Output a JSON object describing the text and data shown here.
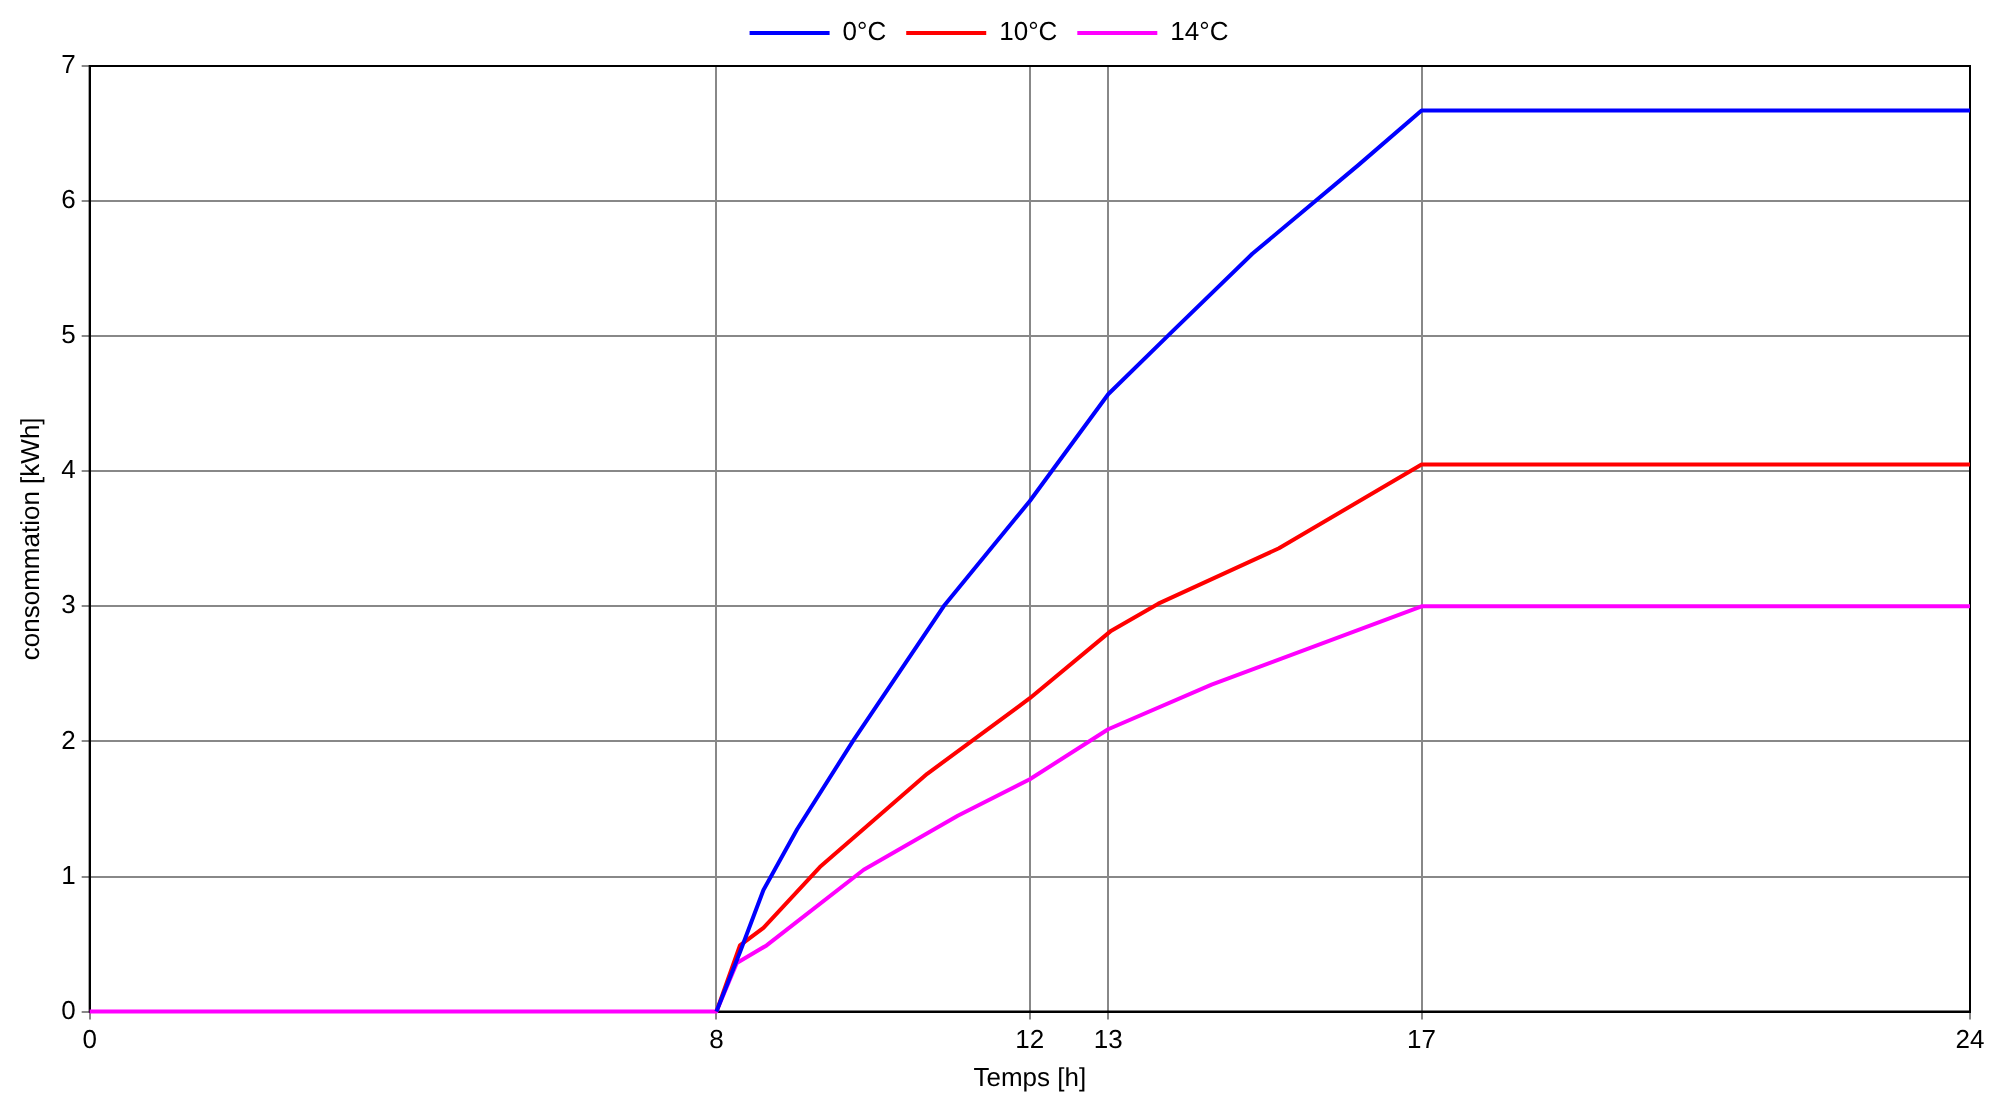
{
  "chart_data": {
    "type": "line",
    "xlabel": "Temps [h]",
    "ylabel": "consommation [kWh]",
    "xlim": [
      0,
      24
    ],
    "xticks": [
      0,
      8,
      12,
      13,
      17,
      24
    ],
    "ylim": [
      0,
      7
    ],
    "yticks": [
      0,
      1,
      2,
      3,
      4,
      5,
      6,
      7
    ],
    "grid": true,
    "legend": "top",
    "marker": "none",
    "line_style": "solid",
    "series": [
      {
        "name": "0°C",
        "color": "#0000ff",
        "x": [
          8,
          8.3,
          8.6,
          9.03,
          9.75,
          10.9,
          12,
          13,
          13.81,
          14.84,
          16.2,
          17,
          24
        ],
        "values": [
          0,
          0.44,
          0.9,
          1.35,
          2.01,
          3.0,
          3.78,
          4.57,
          5.03,
          5.61,
          6.27,
          6.67,
          6.67
        ]
      },
      {
        "name": "10°C",
        "color": "#ff0000",
        "x": [
          8,
          8.3,
          8.6,
          9.32,
          10.69,
          12,
          13.04,
          13.64,
          15.18,
          17,
          24
        ],
        "values": [
          0,
          0.49,
          0.62,
          1.07,
          1.76,
          2.32,
          2.82,
          3.02,
          3.43,
          4.05,
          4.05
        ]
      },
      {
        "name": "14°C",
        "color": "#ff00ff",
        "x": [
          0,
          8,
          8.26,
          8.64,
          9.88,
          11.08,
          12,
          13,
          14.32,
          17,
          24
        ],
        "values": [
          0,
          0,
          0.36,
          0.49,
          1.05,
          1.45,
          1.72,
          2.09,
          2.42,
          3.0,
          3.0
        ]
      }
    ]
  }
}
